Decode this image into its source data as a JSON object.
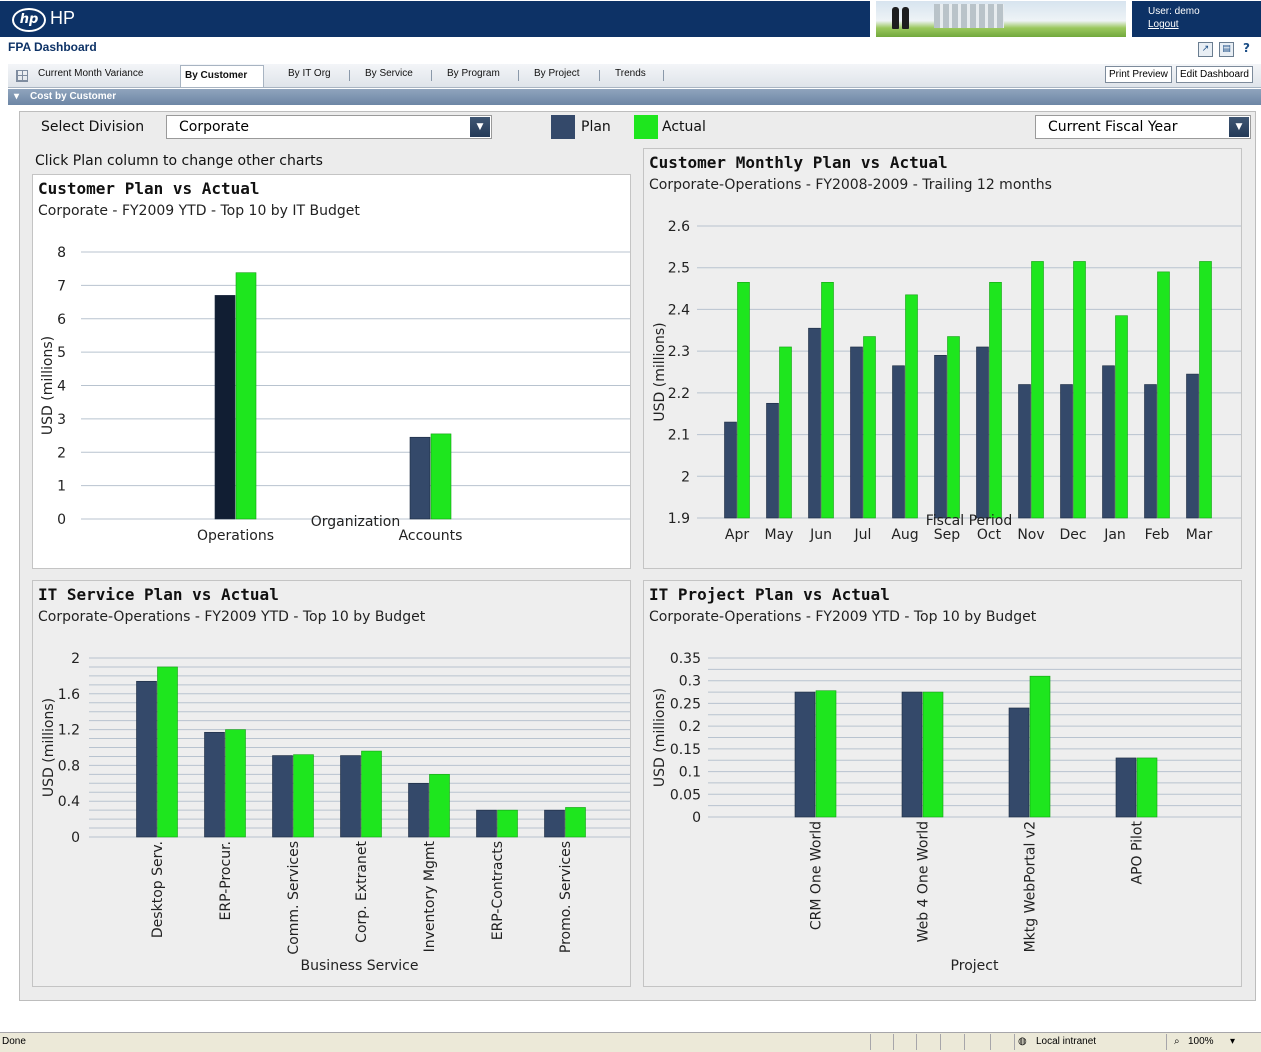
{
  "header": {
    "brand": "HP",
    "logo_text": "hp",
    "user": "User: demo",
    "logout": "Logout"
  },
  "app": {
    "title": "FPA Dashboard",
    "tabs": [
      "Current Month Variance",
      "By Customer",
      "By IT Org",
      "By Service",
      "By Program",
      "By Project",
      "Trends"
    ],
    "active_tab": "By Customer",
    "print_preview": "Print Preview",
    "edit_dashboard": "Edit Dashboard",
    "section_title": "Cost by Customer"
  },
  "controls": {
    "select_division_label": "Select Division",
    "division_value": "Corporate",
    "legend_plan": "Plan",
    "legend_actual": "Actual",
    "period_value": "Current Fiscal Year",
    "hint": "Click Plan column to change other charts"
  },
  "colors": {
    "plan": "#34496a",
    "plan_selected": "#111e33",
    "actual": "#1ee61e",
    "header_blue": "#0d3266"
  },
  "chart_data": [
    {
      "id": "customer",
      "type": "bar",
      "title": "Customer Plan vs Actual",
      "subtitle": "Corporate - FY2009 YTD - Top 10 by IT Budget",
      "xlabel": "Organization",
      "ylabel": "USD (millions)",
      "categories": [
        "Operations",
        "Accounts"
      ],
      "series": [
        {
          "name": "Plan",
          "values": [
            6.7,
            2.45
          ]
        },
        {
          "name": "Actual",
          "values": [
            7.38,
            2.55
          ]
        }
      ],
      "ylim": [
        0,
        8
      ],
      "ticks": [
        "0",
        "1",
        "2",
        "3",
        "4",
        "5",
        "6",
        "7",
        "8"
      ],
      "selected_index": 0
    },
    {
      "id": "monthly",
      "type": "bar",
      "title": "Customer Monthly Plan vs Actual",
      "subtitle": "Corporate-Operations - FY2008-2009 - Trailing 12 months",
      "xlabel": "Fiscal Period",
      "ylabel": "USD (millions)",
      "categories": [
        "Apr",
        "May",
        "Jun",
        "Jul",
        "Aug",
        "Sep",
        "Oct",
        "Nov",
        "Dec",
        "Jan",
        "Feb",
        "Mar"
      ],
      "series": [
        {
          "name": "Plan",
          "values": [
            2.13,
            2.175,
            2.355,
            2.31,
            2.265,
            2.29,
            2.31,
            2.22,
            2.22,
            2.265,
            2.22,
            2.245
          ]
        },
        {
          "name": "Actual",
          "values": [
            2.465,
            2.31,
            2.465,
            2.335,
            2.435,
            2.335,
            2.465,
            2.515,
            2.515,
            2.385,
            2.49,
            2.515
          ]
        }
      ],
      "ylim": [
        1.9,
        2.6
      ],
      "ticks": [
        "1.9",
        "2",
        "2.1",
        "2.2",
        "2.3",
        "2.4",
        "2.5",
        "2.6"
      ]
    },
    {
      "id": "service",
      "type": "bar",
      "title": "IT Service Plan vs Actual",
      "subtitle": "Corporate-Operations - FY2009 YTD - Top 10 by Budget",
      "xlabel": "Business Service",
      "ylabel": "USD (millions)",
      "categories": [
        "Desktop Serv.",
        "ERP-Procur.",
        "Comm. Services",
        "Corp. Extranet",
        "Inventory Mgmt",
        "ERP-Contracts",
        "Promo. Services"
      ],
      "series": [
        {
          "name": "Plan",
          "values": [
            1.74,
            1.17,
            0.91,
            0.91,
            0.6,
            0.3,
            0.3
          ]
        },
        {
          "name": "Actual",
          "values": [
            1.9,
            1.2,
            0.92,
            0.96,
            0.7,
            0.3,
            0.33
          ]
        }
      ],
      "ylim": [
        0,
        2
      ],
      "ticks": [
        "0",
        "0.4",
        "0.8",
        "1.2",
        "1.6",
        "2"
      ]
    },
    {
      "id": "project",
      "type": "bar",
      "title": "IT Project Plan vs Actual",
      "subtitle": "Corporate-Operations - FY2009 YTD - Top 10 by Budget",
      "xlabel": "Project",
      "ylabel": "USD (millions)",
      "categories": [
        "CRM One World",
        "Web 4 One World",
        "Mktg WebPortal v2",
        "APO Pilot"
      ],
      "series": [
        {
          "name": "Plan",
          "values": [
            0.275,
            0.275,
            0.24,
            0.13
          ]
        },
        {
          "name": "Actual",
          "values": [
            0.278,
            0.275,
            0.31,
            0.13
          ]
        }
      ],
      "ylim": [
        0,
        0.35
      ],
      "ticks": [
        "0",
        "0.05",
        "0.1",
        "0.15",
        "0.2",
        "0.25",
        "0.3",
        "0.35"
      ]
    }
  ],
  "statusbar": {
    "left": "Done",
    "zone": "Local intranet",
    "zoom": "100%"
  }
}
